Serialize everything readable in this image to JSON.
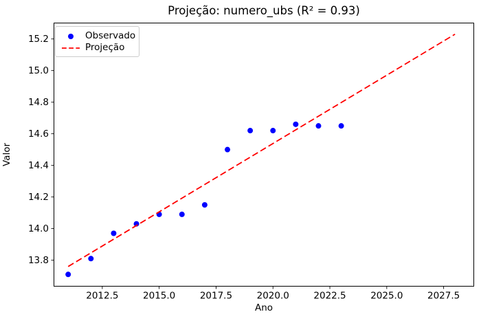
{
  "chart_data": {
    "type": "scatter",
    "title": "Projeção: numero_ubs (R² = 0.93)",
    "xlabel": "Ano",
    "ylabel": "Valor",
    "xlim": [
      2010.36,
      2028.84
    ],
    "ylim": [
      13.633,
      15.303
    ],
    "xticks": [
      2012.5,
      2015.0,
      2017.5,
      2020.0,
      2022.5,
      2025.0,
      2027.5
    ],
    "xtick_labels": [
      "2012.5",
      "2015.0",
      "2017.5",
      "2020.0",
      "2022.5",
      "2025.0",
      "2027.5"
    ],
    "yticks": [
      13.8,
      14.0,
      14.2,
      14.4,
      14.6,
      14.8,
      15.0,
      15.2
    ],
    "ytick_labels": [
      "13.8",
      "14.0",
      "14.2",
      "14.4",
      "14.6",
      "14.8",
      "15.0",
      "15.2"
    ],
    "grid": false,
    "r_squared": "0.93",
    "series": [
      {
        "name": "Observado",
        "type": "scatter",
        "color": "#0000ff",
        "x": [
          2011,
          2012,
          2013,
          2014,
          2015,
          2016,
          2017,
          2018,
          2019,
          2020,
          2021,
          2022,
          2023
        ],
        "y": [
          13.71,
          13.81,
          13.97,
          14.03,
          14.09,
          14.09,
          14.15,
          14.5,
          14.62,
          14.62,
          14.66,
          14.65,
          14.65
        ]
      },
      {
        "name": "Projeção",
        "type": "line",
        "style": "dashed",
        "color": "#ff0000",
        "x": [
          2011,
          2028
        ],
        "y": [
          13.76,
          15.23
        ]
      }
    ],
    "legend": {
      "position": "upper-left",
      "entries": [
        {
          "label": "Observado",
          "marker": "dot",
          "color": "#0000ff"
        },
        {
          "label": "Projeção",
          "marker": "dashed-line",
          "color": "#ff0000"
        }
      ]
    }
  }
}
